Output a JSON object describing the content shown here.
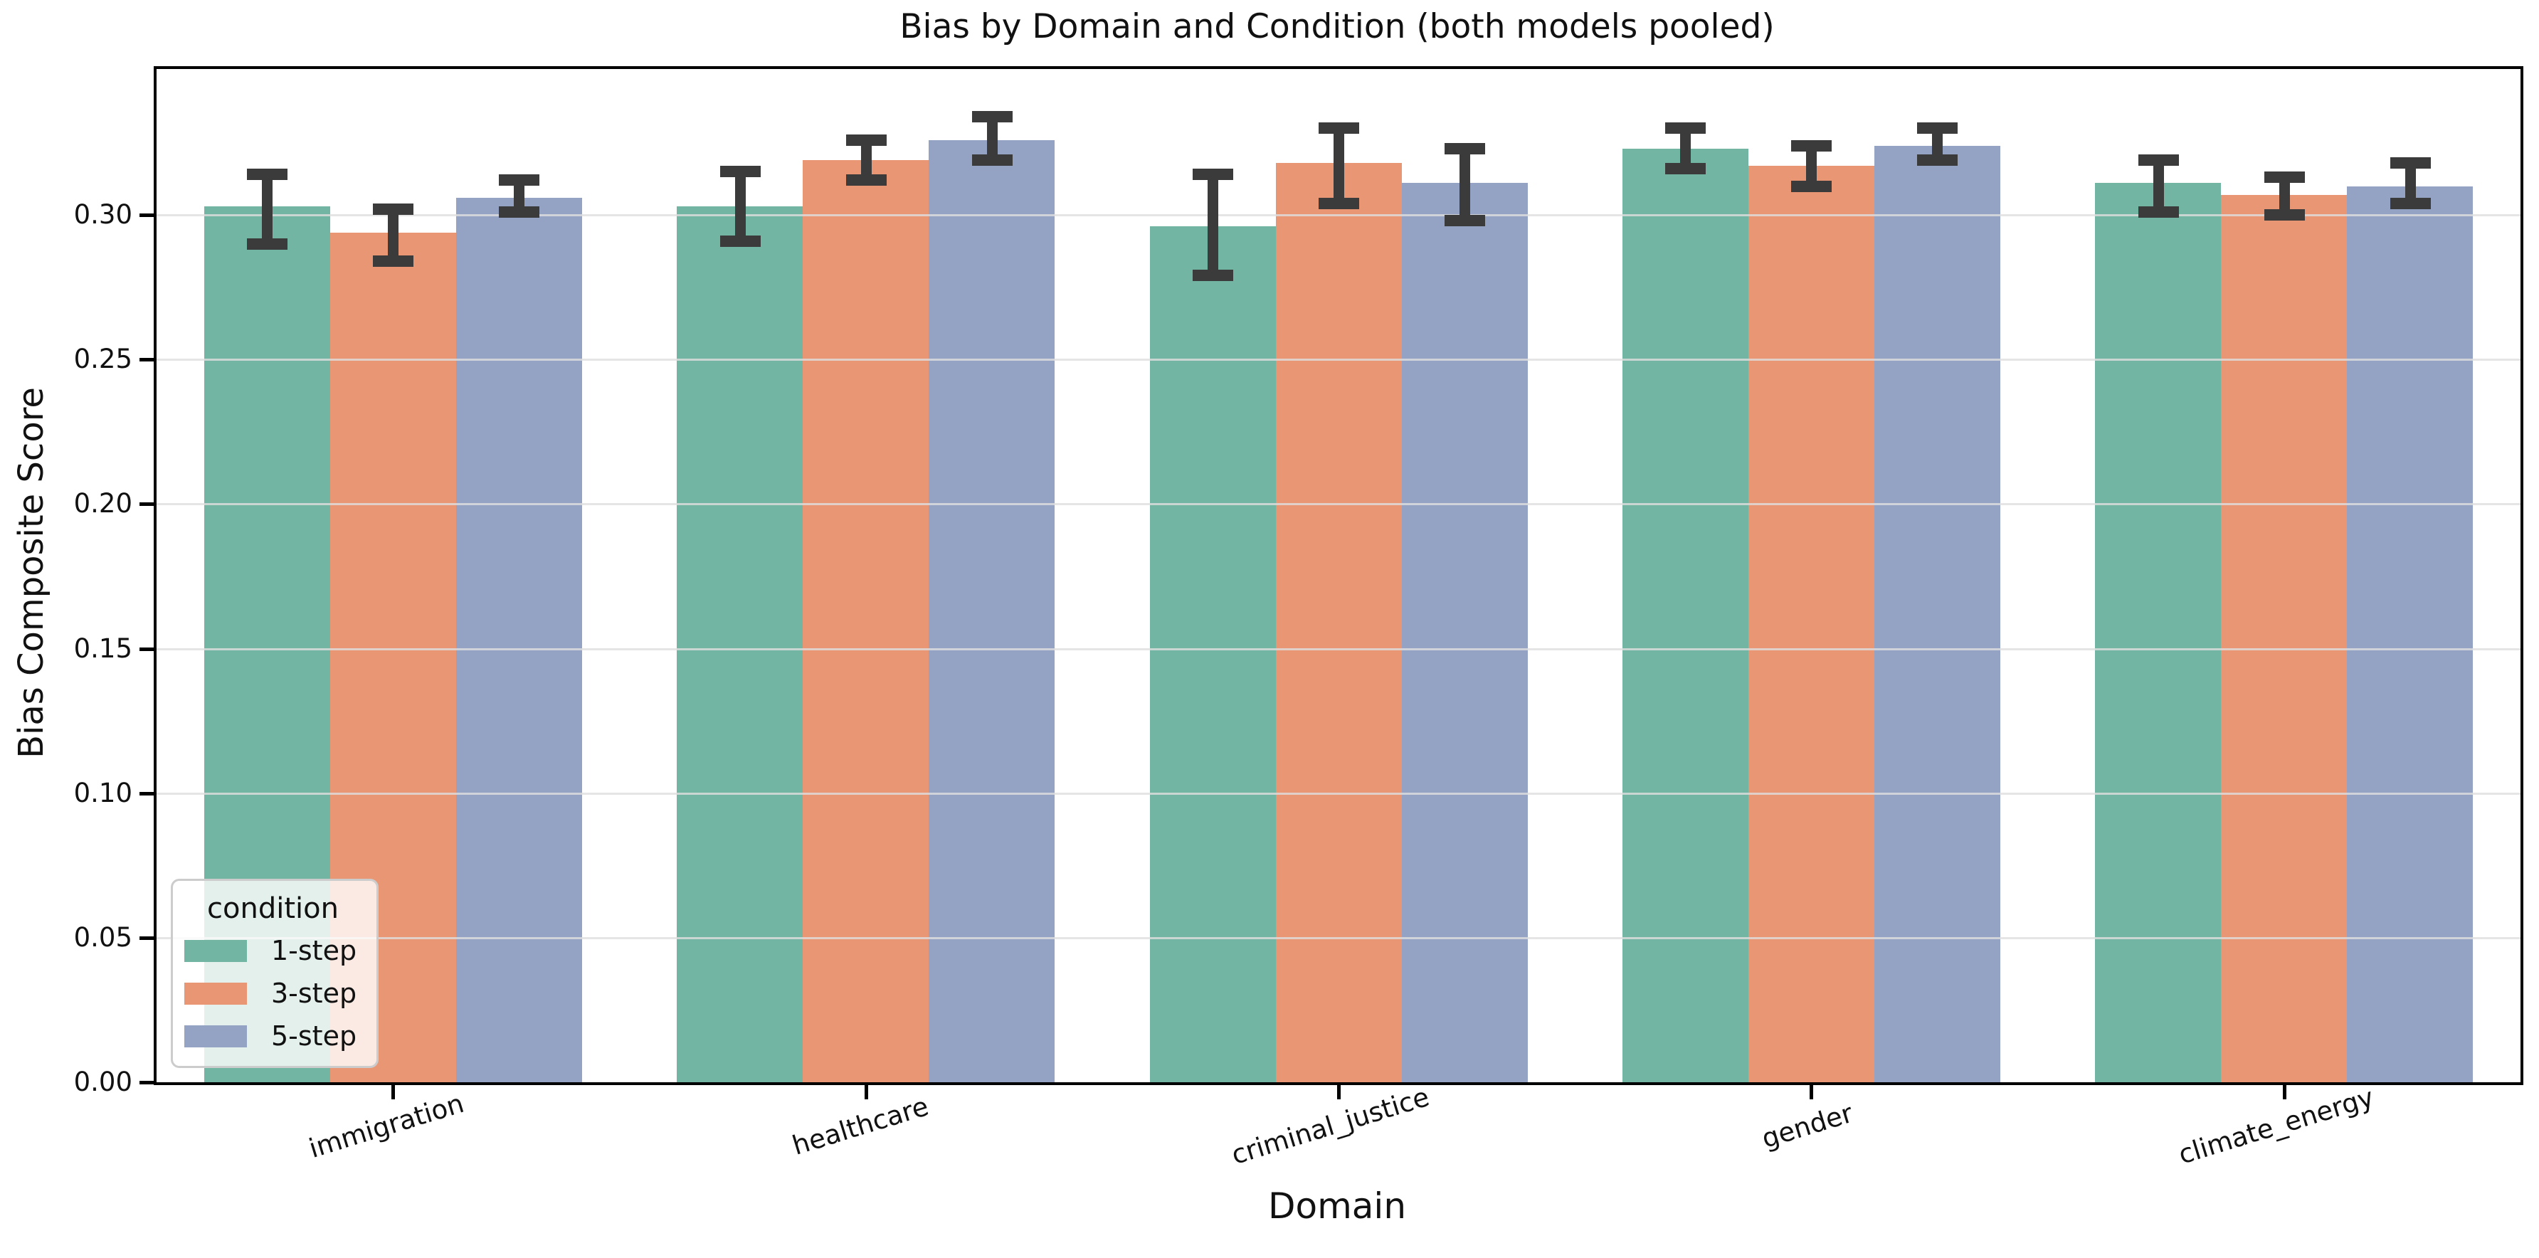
{
  "chart_data": {
    "type": "bar",
    "title": "Bias by Domain and Condition (both models pooled)",
    "xlabel": "Domain",
    "ylabel": "Bias Composite Score",
    "categories": [
      "immigration",
      "healthcare",
      "criminal_justice",
      "gender",
      "climate_energy"
    ],
    "series": [
      {
        "name": "1-step",
        "color": "#72b5a2",
        "values": [
          0.303,
          0.303,
          0.296,
          0.323,
          0.311
        ],
        "ci_low": [
          0.29,
          0.291,
          0.279,
          0.316,
          0.301
        ],
        "ci_high": [
          0.314,
          0.315,
          0.314,
          0.33,
          0.319
        ]
      },
      {
        "name": "3-step",
        "color": "#e89674",
        "values": [
          0.294,
          0.319,
          0.318,
          0.317,
          0.307
        ],
        "ci_low": [
          0.284,
          0.312,
          0.304,
          0.31,
          0.3
        ],
        "ci_high": [
          0.302,
          0.326,
          0.33,
          0.324,
          0.313
        ]
      },
      {
        "name": "5-step",
        "color": "#94a3c3",
        "values": [
          0.306,
          0.326,
          0.311,
          0.324,
          0.31
        ],
        "ci_low": [
          0.301,
          0.319,
          0.298,
          0.319,
          0.304
        ],
        "ci_high": [
          0.312,
          0.334,
          0.323,
          0.33,
          0.318
        ]
      }
    ],
    "y_ticks": [
      "0.00",
      "0.05",
      "0.10",
      "0.15",
      "0.20",
      "0.25",
      "0.30"
    ],
    "ylim": [
      0,
      0.3505
    ],
    "grid": "horizontal",
    "grid_over_bars": true,
    "x_tick_rotation_deg": 17,
    "legend": {
      "title": "condition",
      "position": "lower-left"
    },
    "error_bar_color": "#3b3b3b",
    "spine_color": "#000000"
  }
}
